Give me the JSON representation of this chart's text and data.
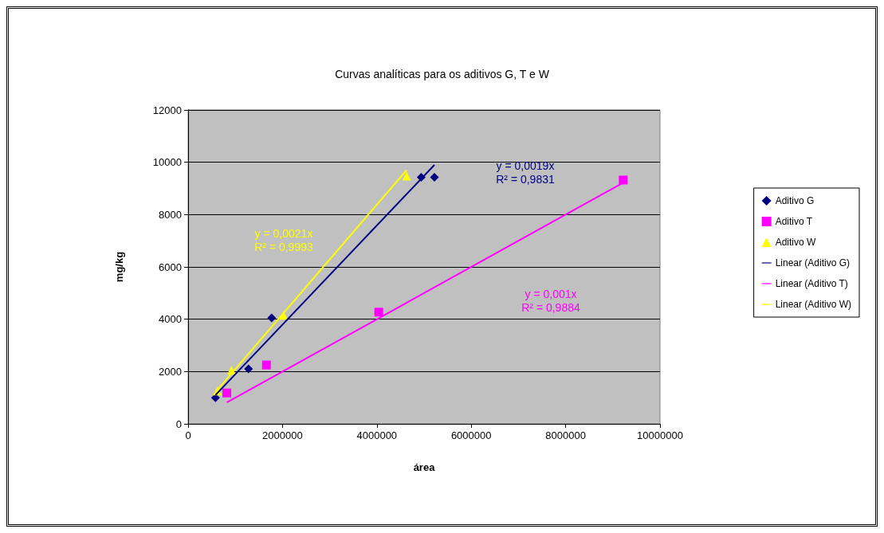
{
  "chart_data": {
    "type": "scatter",
    "title": "Curvas analíticas para os aditivos G, T e W",
    "xlabel": "área",
    "ylabel": "mg/kg",
    "xlim": [
      0,
      10000000
    ],
    "xticks": [
      0,
      2000000,
      4000000,
      6000000,
      8000000,
      10000000
    ],
    "ylim": [
      0,
      12000
    ],
    "yticks": [
      0,
      2000,
      4000,
      6000,
      8000,
      10000,
      12000
    ],
    "grid": "y",
    "legend": "right",
    "series": [
      {
        "name": "Aditivo G",
        "marker": "diamond",
        "color": "#000080",
        "x": [
          580000,
          1280000,
          1770000,
          4940000,
          5220000
        ],
        "values": [
          1000,
          2100,
          4050,
          9430,
          9430
        ]
      },
      {
        "name": "Aditivo T",
        "marker": "square",
        "color": "#ff00ff",
        "x": [
          820000,
          1660000,
          4040000,
          9220000
        ],
        "values": [
          1180,
          2250,
          4270,
          9320
        ]
      },
      {
        "name": "Aditivo W",
        "marker": "triangle",
        "color": "#ffff00",
        "x": [
          620000,
          920000,
          2020000,
          4630000
        ],
        "values": [
          1260,
          2050,
          4150,
          9470
        ]
      },
      {
        "name": "Linear (Aditivo G)",
        "type": "line",
        "marker": "none",
        "color": "#000080",
        "x": [
          580000,
          5220000
        ],
        "values": [
          1100,
          9900
        ]
      },
      {
        "name": "Linear (Aditivo T)",
        "type": "line",
        "marker": "none",
        "color": "#ff00ff",
        "x": [
          820000,
          9220000
        ],
        "values": [
          820,
          9220
        ]
      },
      {
        "name": "Linear (Aditivo W)",
        "type": "line",
        "marker": "none",
        "color": "#ffff00",
        "x": [
          620000,
          4630000
        ],
        "values": [
          1300,
          9700
        ]
      }
    ],
    "annotations": [
      "y = 0,0019x\nR² = 0,9831",
      "y = 0,001x\nR² = 0,9884",
      "y = 0,0021x\nR² = 0,9993"
    ]
  }
}
